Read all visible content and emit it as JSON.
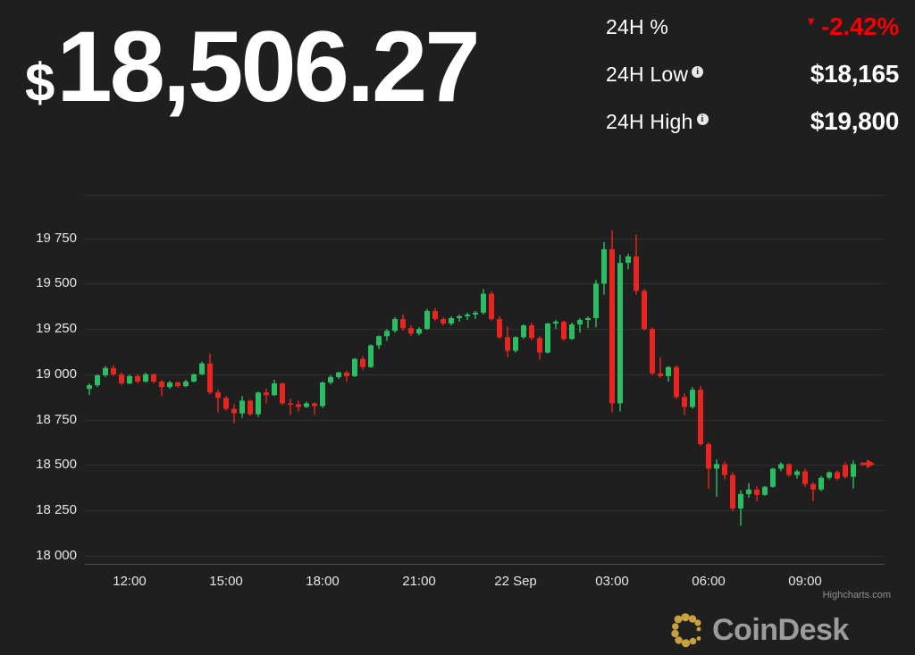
{
  "header": {
    "currency": "$",
    "price": "18,506.27",
    "stats": [
      {
        "label": "24H %",
        "value": "-2.42%",
        "direction": "down",
        "has_info": false
      },
      {
        "label": "24H Low",
        "value": "$18,165",
        "direction": "flat",
        "has_info": true
      },
      {
        "label": "24H High",
        "value": "$19,800",
        "direction": "flat",
        "has_info": true
      }
    ],
    "down_color": "#f40000"
  },
  "chart_data": {
    "type": "candlestick",
    "title": "",
    "xlabel": "",
    "ylabel": "",
    "grid": true,
    "legend": false,
    "ylim": [
      17950,
      19990
    ],
    "y_ticks": [
      18000,
      18250,
      18500,
      18750,
      19000,
      19250,
      19500,
      19750
    ],
    "y_tick_format": "thousands space-separated",
    "x_tick_labels": [
      "12:00",
      "15:00",
      "18:00",
      "21:00",
      "22 Sep",
      "03:00",
      "06:00",
      "09:00"
    ],
    "x_tick_candle_indices": [
      5,
      17,
      29,
      41,
      53,
      65,
      77,
      89
    ],
    "candle_interval_minutes": 15,
    "up_color": "#2bbd62",
    "down_color": "#e8251f",
    "last_price_marker": 18506,
    "candles_ohlc": [
      [
        18920,
        18950,
        18885,
        18940
      ],
      [
        18940,
        19000,
        18930,
        18995
      ],
      [
        18995,
        19045,
        18985,
        19035
      ],
      [
        19035,
        19050,
        18990,
        19000
      ],
      [
        19000,
        19010,
        18940,
        18950
      ],
      [
        18950,
        19000,
        18945,
        18990
      ],
      [
        18990,
        19000,
        18950,
        18960
      ],
      [
        18960,
        19010,
        18955,
        19000
      ],
      [
        19000,
        19005,
        18950,
        18960
      ],
      [
        18960,
        18970,
        18880,
        18930
      ],
      [
        18930,
        18965,
        18920,
        18955
      ],
      [
        18955,
        18960,
        18925,
        18935
      ],
      [
        18935,
        18970,
        18930,
        18960
      ],
      [
        18960,
        19005,
        18955,
        19000
      ],
      [
        19000,
        19070,
        18995,
        19060
      ],
      [
        19060,
        19115,
        18890,
        18900
      ],
      [
        18900,
        18915,
        18790,
        18870
      ],
      [
        18870,
        18880,
        18800,
        18810
      ],
      [
        18810,
        18835,
        18730,
        18785
      ],
      [
        18785,
        18880,
        18760,
        18855
      ],
      [
        18855,
        18860,
        18770,
        18780
      ],
      [
        18780,
        18905,
        18765,
        18900
      ],
      [
        18900,
        18920,
        18840,
        18885
      ],
      [
        18885,
        18970,
        18880,
        18950
      ],
      [
        18950,
        18955,
        18830,
        18840
      ],
      [
        18840,
        18865,
        18775,
        18835
      ],
      [
        18835,
        18855,
        18795,
        18820
      ],
      [
        18820,
        18850,
        18815,
        18840
      ],
      [
        18840,
        18845,
        18775,
        18825
      ],
      [
        18825,
        18960,
        18815,
        18955
      ],
      [
        18955,
        18995,
        18945,
        18985
      ],
      [
        18985,
        19015,
        18975,
        19010
      ],
      [
        19010,
        19020,
        18960,
        18990
      ],
      [
        18990,
        19090,
        18985,
        19085
      ],
      [
        19085,
        19100,
        19025,
        19040
      ],
      [
        19040,
        19165,
        19035,
        19160
      ],
      [
        19160,
        19215,
        19140,
        19210
      ],
      [
        19210,
        19250,
        19185,
        19240
      ],
      [
        19240,
        19315,
        19230,
        19305
      ],
      [
        19305,
        19330,
        19240,
        19255
      ],
      [
        19255,
        19270,
        19210,
        19225
      ],
      [
        19225,
        19260,
        19215,
        19250
      ],
      [
        19250,
        19360,
        19245,
        19350
      ],
      [
        19350,
        19365,
        19295,
        19305
      ],
      [
        19305,
        19315,
        19270,
        19280
      ],
      [
        19280,
        19320,
        19270,
        19310
      ],
      [
        19310,
        19330,
        19290,
        19320
      ],
      [
        19320,
        19340,
        19300,
        19330
      ],
      [
        19330,
        19350,
        19305,
        19340
      ],
      [
        19340,
        19470,
        19330,
        19445
      ],
      [
        19445,
        19455,
        19295,
        19305
      ],
      [
        19305,
        19320,
        19195,
        19205
      ],
      [
        19205,
        19265,
        19095,
        19130
      ],
      [
        19130,
        19210,
        19120,
        19205
      ],
      [
        19205,
        19275,
        19195,
        19270
      ],
      [
        19270,
        19285,
        19190,
        19200
      ],
      [
        19200,
        19210,
        19080,
        19120
      ],
      [
        19120,
        19285,
        19115,
        19280
      ],
      [
        19280,
        19300,
        19250,
        19290
      ],
      [
        19290,
        19295,
        19185,
        19195
      ],
      [
        19195,
        19285,
        19190,
        19275
      ],
      [
        19275,
        19310,
        19230,
        19300
      ],
      [
        19300,
        19320,
        19255,
        19310
      ],
      [
        19310,
        19520,
        19260,
        19500
      ],
      [
        19500,
        19730,
        19440,
        19690
      ],
      [
        19690,
        19795,
        18790,
        18840
      ],
      [
        18840,
        19660,
        18795,
        19615
      ],
      [
        19615,
        19665,
        19580,
        19650
      ],
      [
        19650,
        19770,
        19440,
        19460
      ],
      [
        19460,
        19470,
        19240,
        19250
      ],
      [
        19250,
        19260,
        18995,
        19005
      ],
      [
        19005,
        19095,
        18980,
        18990
      ],
      [
        18990,
        19045,
        18960,
        19040
      ],
      [
        19040,
        19050,
        18865,
        18875
      ],
      [
        18875,
        18895,
        18775,
        18820
      ],
      [
        18820,
        18930,
        18810,
        18915
      ],
      [
        18915,
        18935,
        18605,
        18615
      ],
      [
        18615,
        18625,
        18370,
        18480
      ],
      [
        18480,
        18530,
        18325,
        18505
      ],
      [
        18505,
        18520,
        18420,
        18445
      ],
      [
        18445,
        18460,
        18245,
        18260
      ],
      [
        18260,
        18360,
        18165,
        18340
      ],
      [
        18340,
        18400,
        18320,
        18365
      ],
      [
        18365,
        18385,
        18300,
        18335
      ],
      [
        18335,
        18385,
        18330,
        18380
      ],
      [
        18380,
        18485,
        18375,
        18480
      ],
      [
        18480,
        18515,
        18465,
        18505
      ],
      [
        18505,
        18510,
        18435,
        18445
      ],
      [
        18445,
        18475,
        18425,
        18465
      ],
      [
        18465,
        18480,
        18380,
        18395
      ],
      [
        18395,
        18405,
        18300,
        18365
      ],
      [
        18365,
        18440,
        18355,
        18430
      ],
      [
        18430,
        18465,
        18420,
        18460
      ],
      [
        18460,
        18470,
        18415,
        18425
      ],
      [
        18500,
        18515,
        18425,
        18435
      ],
      [
        18435,
        18525,
        18370,
        18505
      ]
    ]
  },
  "footer": {
    "credits": "Highcharts.com",
    "brand": "CoinDesk",
    "brand_gold": "#c9a23c"
  }
}
